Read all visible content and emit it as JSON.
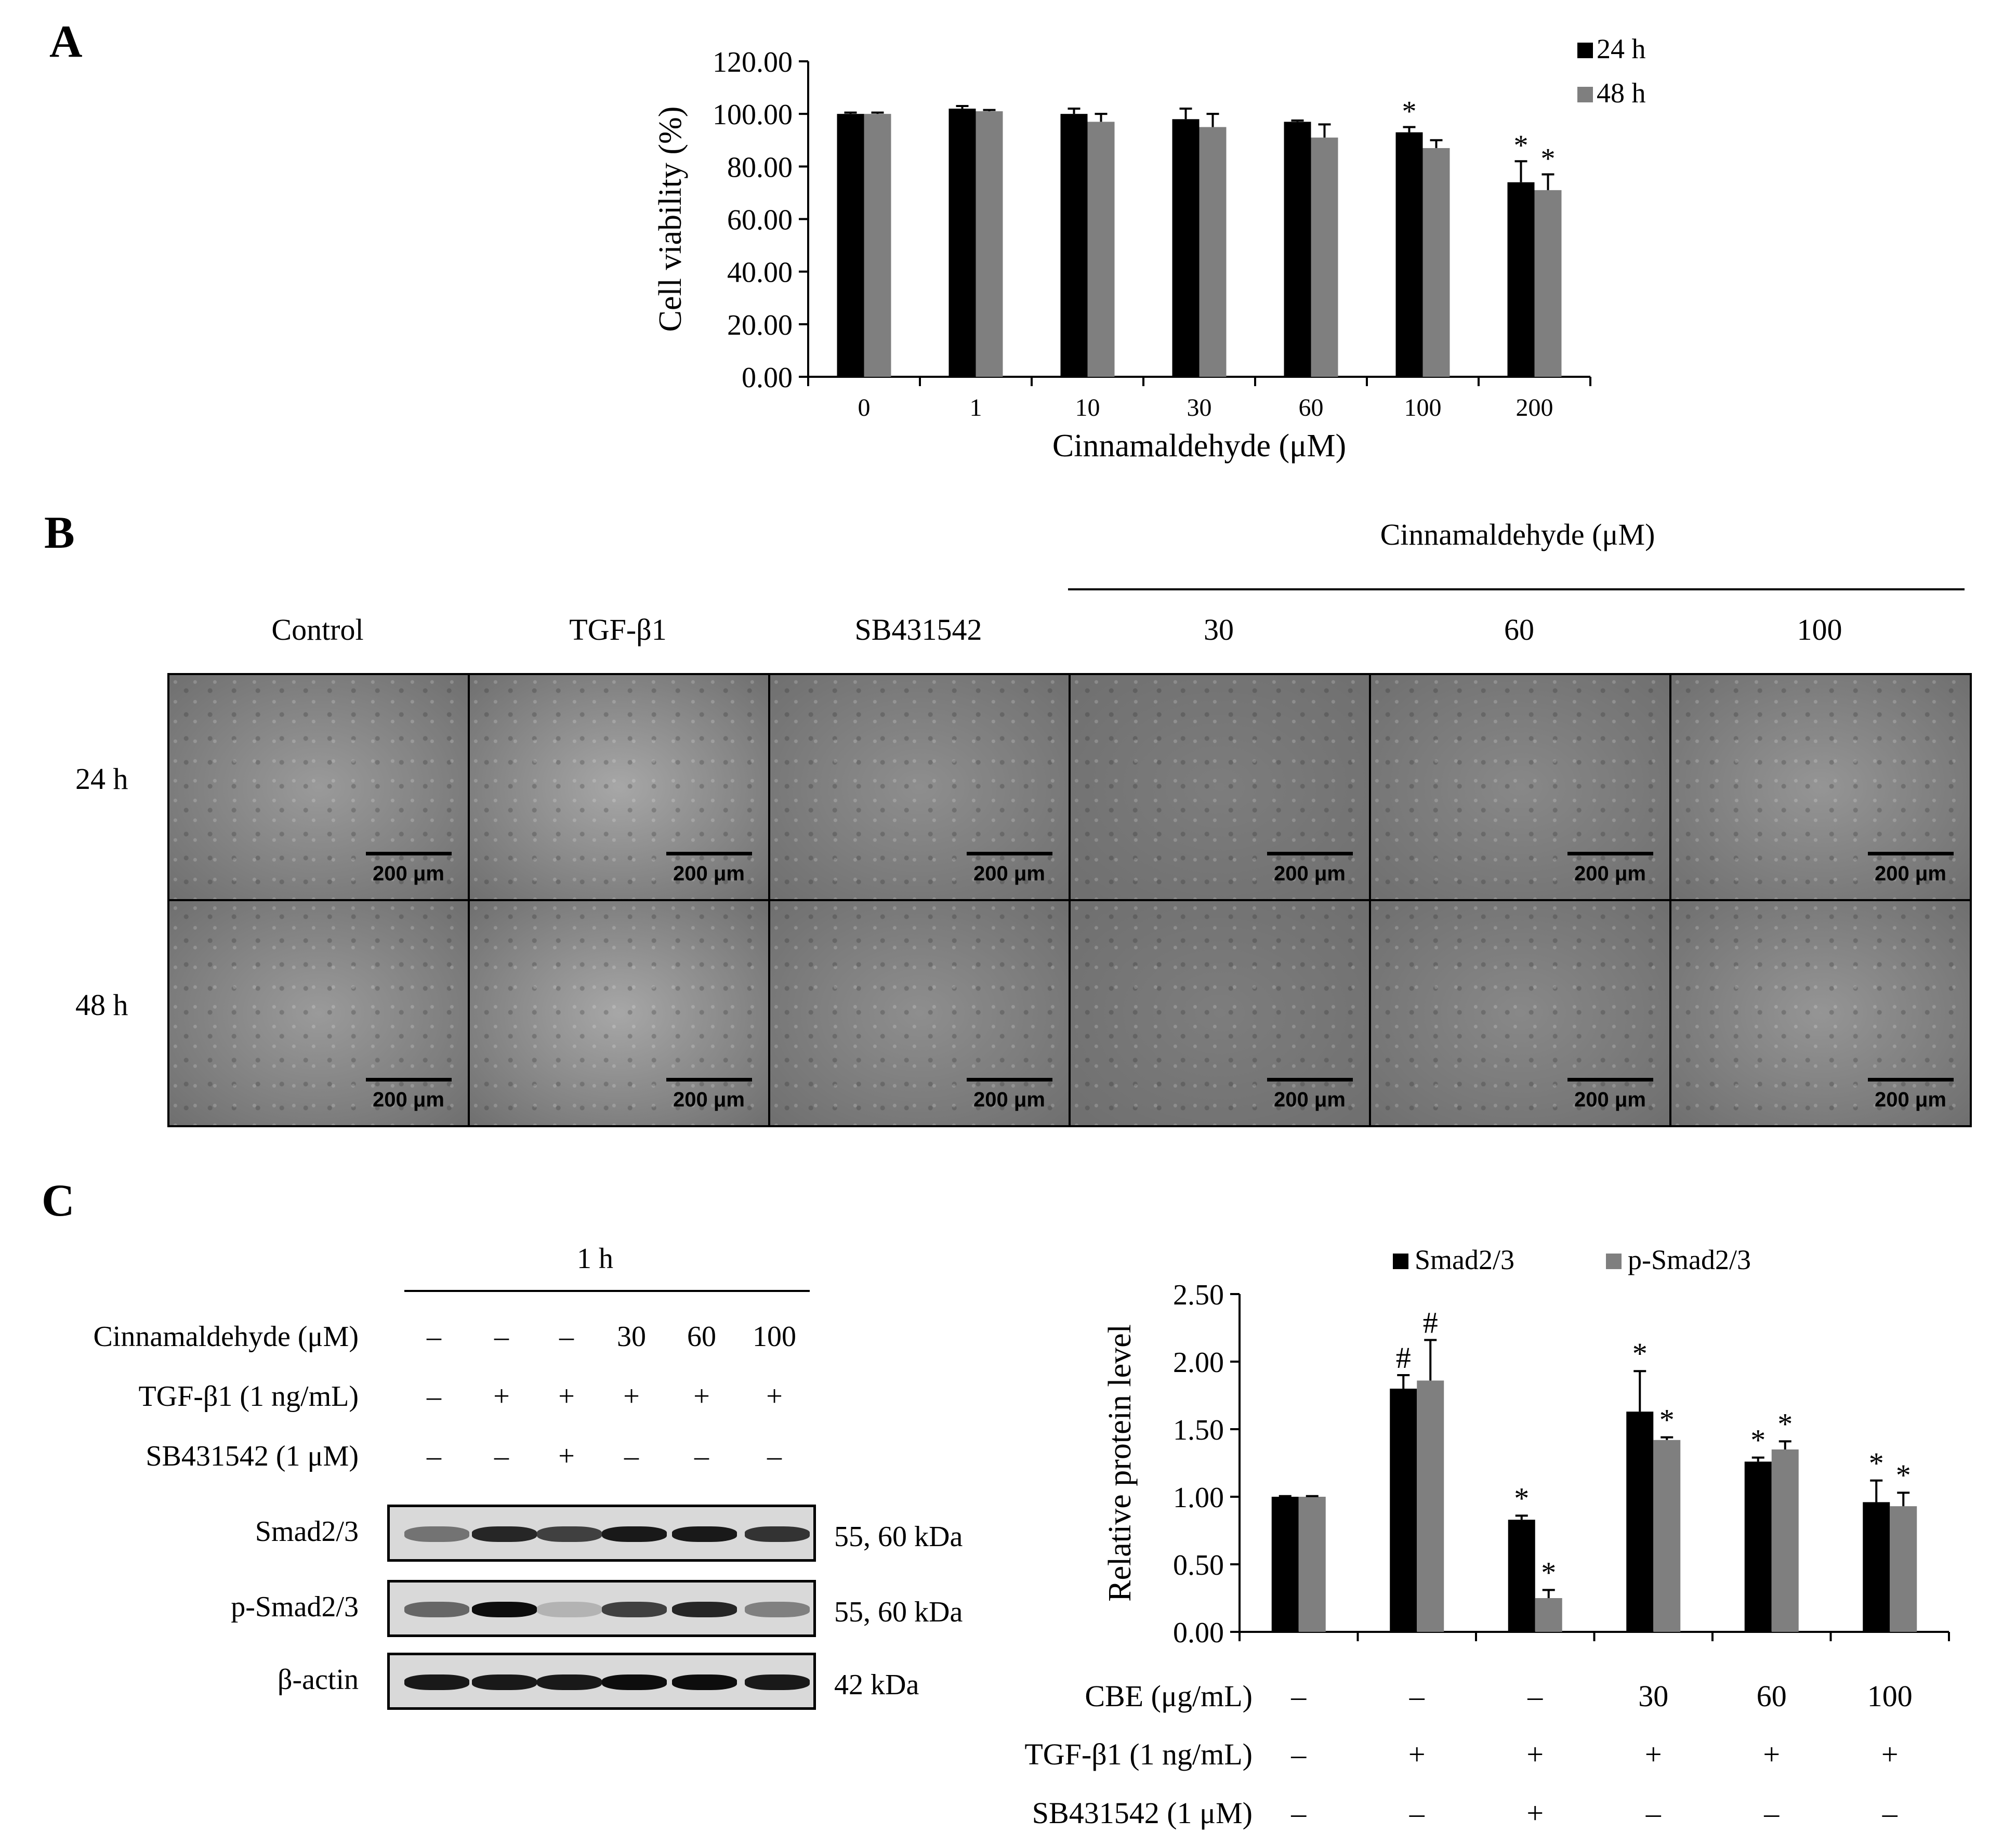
{
  "panels": {
    "a": "A",
    "b": "B",
    "c": "C"
  },
  "chart_a": {
    "type": "bar",
    "ylabel": "Cell viability (%)",
    "xlabel": "Cinnamaldehyde (μM)",
    "ylim": [
      0,
      120
    ],
    "yticks": [
      "0.00",
      "20.00",
      "40.00",
      "60.00",
      "80.00",
      "100.00",
      "120.00"
    ],
    "categories": [
      "0",
      "1",
      "10",
      "30",
      "60",
      "100",
      "200"
    ],
    "series": [
      {
        "name": "24 h",
        "color": "#000000",
        "values": [
          100,
          102,
          100,
          98,
          97,
          93,
          74
        ],
        "errors": [
          0.5,
          1,
          2,
          4,
          0.5,
          2,
          8
        ]
      },
      {
        "name": "48 h",
        "color": "#7f7f7f",
        "values": [
          100,
          101,
          97,
          95,
          91,
          87,
          71
        ],
        "errors": [
          0.5,
          0.5,
          3,
          5,
          5,
          3,
          6
        ]
      }
    ],
    "significance": [
      "",
      "",
      "",
      "",
      "",
      "*",
      "*"
    ],
    "significance2": [
      "",
      "",
      "",
      "",
      "",
      "",
      "*"
    ],
    "legend_position": "top-right"
  },
  "micrographs": {
    "group_label": "Cinnamaldehyde (μM)",
    "columns": [
      "Control",
      "TGF-β1",
      "SB431542",
      "30",
      "60",
      "100"
    ],
    "rows": [
      "24 h",
      "48 h"
    ],
    "scale_label": "200 μm"
  },
  "blot": {
    "time_label": "1 h",
    "treatments": [
      {
        "label": "Cinnamaldehyde (μM)",
        "values": [
          "–",
          "–",
          "–",
          "30",
          "60",
          "100"
        ]
      },
      {
        "label": "TGF-β1 (1 ng/mL)",
        "values": [
          "–",
          "+",
          "+",
          "+",
          "+",
          "+"
        ]
      },
      {
        "label": "SB431542 (1 μM)",
        "values": [
          "–",
          "–",
          "+",
          "–",
          "–",
          "–"
        ]
      }
    ],
    "rows": [
      {
        "label": "Smad2/3",
        "size": "55, 60 kDa",
        "intensity": [
          0.55,
          0.85,
          0.75,
          0.9,
          0.9,
          0.8
        ]
      },
      {
        "label": "p-Smad2/3",
        "size": "55, 60 kDa",
        "intensity": [
          0.6,
          0.95,
          0.3,
          0.75,
          0.85,
          0.5
        ]
      },
      {
        "label": "β-actin",
        "size": "42 kDa",
        "intensity": [
          0.9,
          0.9,
          0.9,
          0.95,
          0.95,
          0.9
        ]
      }
    ]
  },
  "chart_c": {
    "type": "bar",
    "ylabel": "Relative protein level",
    "ylim": [
      0,
      2.5
    ],
    "yticks": [
      "0.00",
      "0.50",
      "1.00",
      "1.50",
      "2.00",
      "2.50"
    ],
    "series": [
      {
        "name": "Smad2/3",
        "color": "#000000",
        "values": [
          1.0,
          1.8,
          0.83,
          1.63,
          1.26,
          0.96
        ],
        "errors": [
          0.005,
          0.1,
          0.03,
          0.3,
          0.03,
          0.16
        ]
      },
      {
        "name": "p-Smad2/3",
        "color": "#7f7f7f",
        "values": [
          1.0,
          1.86,
          0.25,
          1.42,
          1.35,
          0.93
        ],
        "errors": [
          0.005,
          0.3,
          0.06,
          0.02,
          0.06,
          0.1
        ]
      }
    ],
    "marks1": [
      "",
      "#",
      "*",
      "*",
      "*",
      "*"
    ],
    "marks2": [
      "",
      "#",
      "*",
      "*",
      "*",
      "*"
    ],
    "legend_position": "top",
    "treatments": [
      {
        "label": "CBE (μg/mL)",
        "values": [
          "–",
          "–",
          "–",
          "30",
          "60",
          "100"
        ]
      },
      {
        "label": "TGF-β1 (1 ng/mL)",
        "values": [
          "–",
          "+",
          "+",
          "+",
          "+",
          "+"
        ]
      },
      {
        "label": "SB431542 (1 μM)",
        "values": [
          "–",
          "–",
          "+",
          "–",
          "–",
          "–"
        ]
      }
    ]
  }
}
